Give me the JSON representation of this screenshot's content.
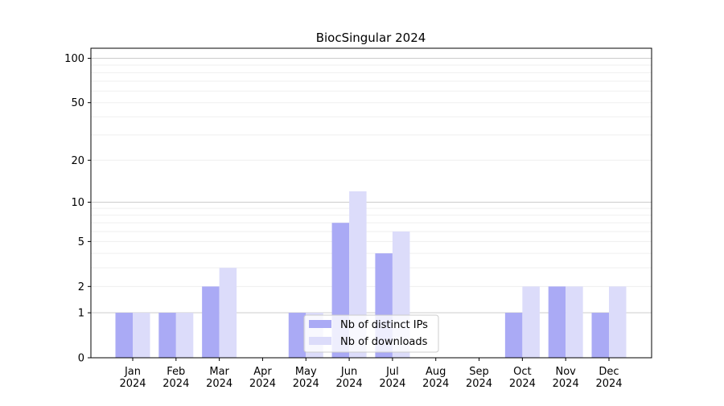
{
  "chart_data": {
    "type": "bar",
    "title": "BiocSingular 2024",
    "xlabel": "",
    "ylabel": "",
    "yscale": "log(1+y)",
    "ylim": [
      0,
      117
    ],
    "yticks": [
      0,
      1,
      2,
      5,
      10,
      20,
      50,
      100
    ],
    "grid": "horizontal, major and minor",
    "legend_position": "bottom-center",
    "categories": [
      "Jan\n2024",
      "Feb\n2024",
      "Mar\n2024",
      "Apr\n2024",
      "May\n2024",
      "Jun\n2024",
      "Jul\n2024",
      "Aug\n2024",
      "Sep\n2024",
      "Oct\n2024",
      "Nov\n2024",
      "Dec\n2024"
    ],
    "series": [
      {
        "name": "Nb of distinct IPs",
        "color": "#aaaaf5",
        "values": [
          1,
          1,
          2,
          0,
          1,
          7,
          4,
          0,
          0,
          1,
          2,
          1
        ]
      },
      {
        "name": "Nb of downloads",
        "color": "#dcdcfa",
        "values": [
          1,
          1,
          3,
          0,
          1,
          12,
          6,
          0,
          0,
          2,
          2,
          2
        ]
      }
    ]
  }
}
